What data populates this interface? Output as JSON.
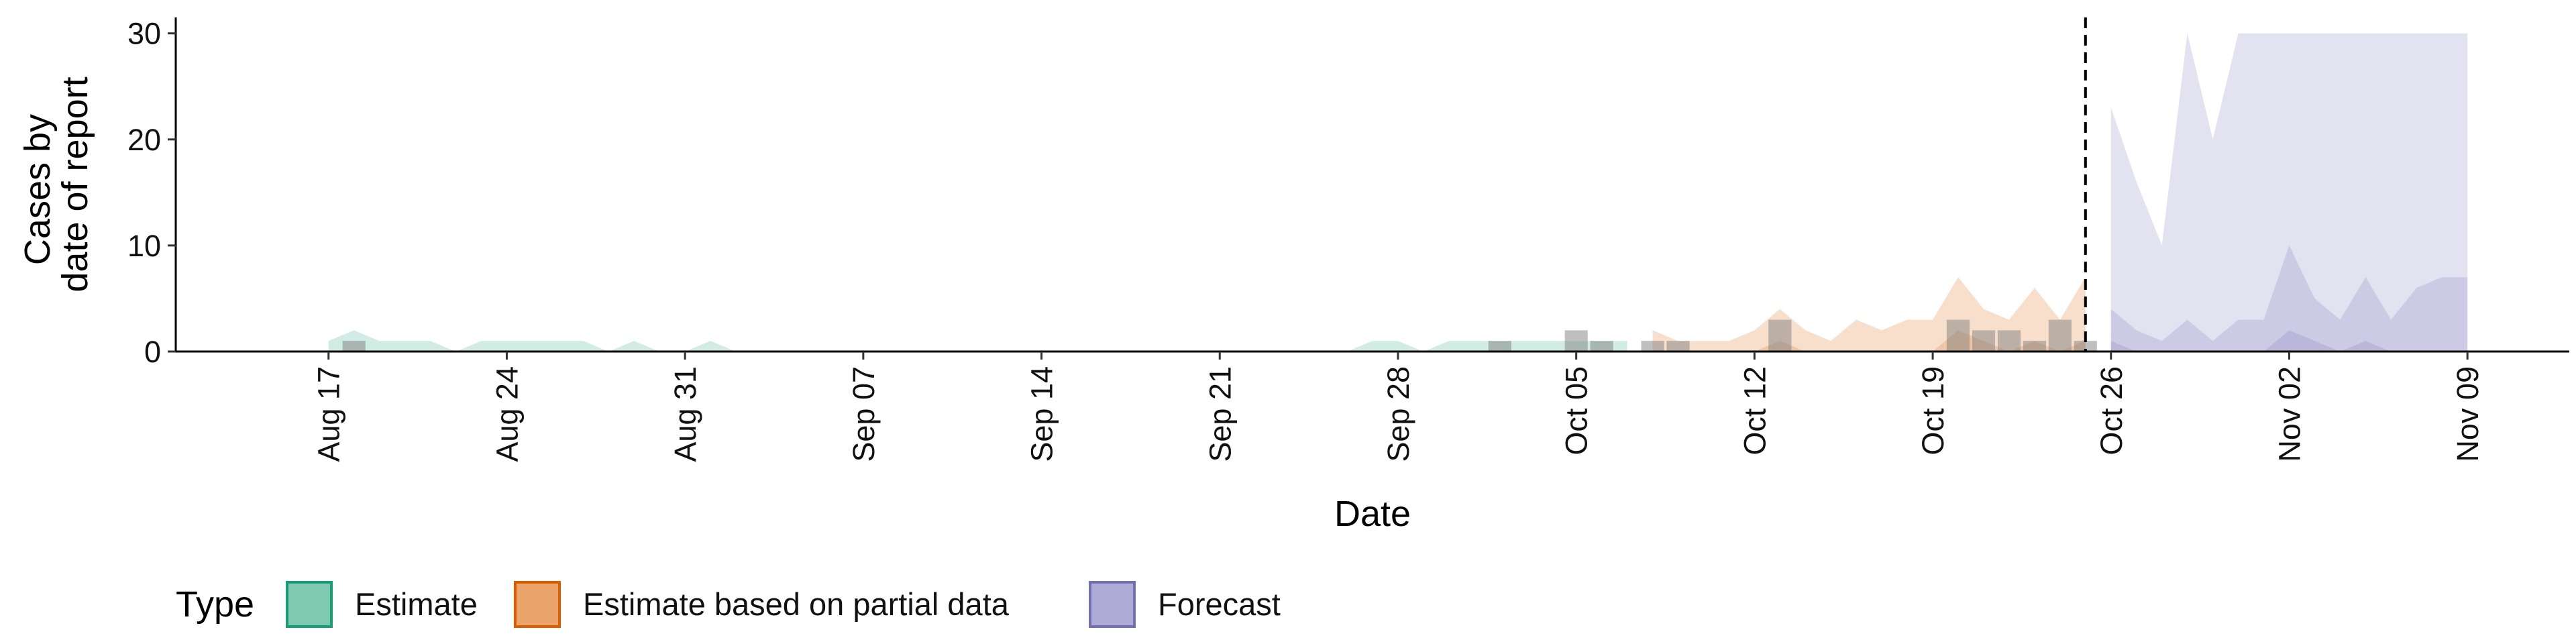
{
  "chart_data": {
    "type": "area",
    "xlabel": "Date",
    "ylabel": [
      "Cases by",
      "date of report"
    ],
    "ylim": [
      0,
      31.5
    ],
    "yticks": [
      0,
      10,
      20,
      30
    ],
    "grid": false,
    "x_ticks": [
      {
        "date": "2020-08-17",
        "label": "Aug 17"
      },
      {
        "date": "2020-08-24",
        "label": "Aug 24"
      },
      {
        "date": "2020-08-31",
        "label": "Aug 31"
      },
      {
        "date": "2020-09-07",
        "label": "Sep 07"
      },
      {
        "date": "2020-09-14",
        "label": "Sep 14"
      },
      {
        "date": "2020-09-21",
        "label": "Sep 21"
      },
      {
        "date": "2020-09-28",
        "label": "Sep 28"
      },
      {
        "date": "2020-10-05",
        "label": "Oct 05"
      },
      {
        "date": "2020-10-12",
        "label": "Oct 12"
      },
      {
        "date": "2020-10-19",
        "label": "Oct 19"
      },
      {
        "date": "2020-10-26",
        "label": "Oct 26"
      },
      {
        "date": "2020-11-02",
        "label": "Nov 02"
      },
      {
        "date": "2020-11-09",
        "label": "Nov 09"
      }
    ],
    "xlim": [
      "2020-08-11",
      "2020-11-13"
    ],
    "forecast_line_date": "2020-10-25",
    "observed_cases": {
      "dates": [
        "2020-08-18",
        "2020-10-02",
        "2020-10-05",
        "2020-10-06",
        "2020-10-08",
        "2020-10-09",
        "2020-10-13",
        "2020-10-20",
        "2020-10-21",
        "2020-10-22",
        "2020-10-23",
        "2020-10-24",
        "2020-10-25"
      ],
      "values": [
        1,
        1,
        2,
        1,
        1,
        1,
        3,
        3,
        2,
        2,
        1,
        3,
        1
      ]
    },
    "series": [
      {
        "name": "Estimate",
        "color": "#1b9e77",
        "bands": [
          {
            "dates": [
              "2020-08-17",
              "2020-08-18",
              "2020-08-19",
              "2020-08-20",
              "2020-08-21",
              "2020-08-22",
              "2020-08-23",
              "2020-08-24",
              "2020-08-25",
              "2020-08-26",
              "2020-08-27",
              "2020-08-28",
              "2020-08-29",
              "2020-08-30",
              "2020-08-31",
              "2020-09-01",
              "2020-09-02",
              "2020-09-26",
              "2020-09-27",
              "2020-09-28",
              "2020-09-29",
              "2020-09-30",
              "2020-10-01",
              "2020-10-02",
              "2020-10-03",
              "2020-10-04",
              "2020-10-05",
              "2020-10-06",
              "2020-10-07"
            ],
            "lower": [
              0,
              0,
              0,
              0,
              0,
              0,
              0,
              0,
              0,
              0,
              0,
              0,
              0,
              0,
              0,
              0,
              0,
              0,
              0,
              0,
              0,
              0,
              0,
              0,
              0,
              0,
              0,
              0,
              0
            ],
            "upper": [
              1,
              2,
              1,
              1,
              1,
              0,
              1,
              1,
              1,
              1,
              1,
              0,
              1,
              0,
              0,
              1,
              0,
              0,
              1,
              1,
              0,
              1,
              1,
              1,
              1,
              1,
              1,
              1,
              1
            ]
          }
        ]
      },
      {
        "name": "Estimate based on partial data",
        "color": "#d95f02",
        "bands": [
          {
            "dates": [
              "2020-10-08",
              "2020-10-09",
              "2020-10-10",
              "2020-10-11",
              "2020-10-12",
              "2020-10-13",
              "2020-10-14",
              "2020-10-15",
              "2020-10-16",
              "2020-10-17",
              "2020-10-18",
              "2020-10-19",
              "2020-10-20",
              "2020-10-21",
              "2020-10-22",
              "2020-10-23",
              "2020-10-24",
              "2020-10-25"
            ],
            "lower": [
              0,
              0,
              0,
              0,
              0,
              0,
              0,
              0,
              0,
              0,
              0,
              0,
              0,
              0,
              0,
              0,
              0,
              0
            ],
            "upper": [
              2,
              1,
              1,
              1,
              2,
              4,
              2,
              1,
              3,
              2,
              3,
              3,
              7,
              4,
              3,
              6,
              3,
              7
            ]
          },
          {
            "dates": [
              "2020-10-08",
              "2020-10-09",
              "2020-10-10",
              "2020-10-11",
              "2020-10-12",
              "2020-10-13",
              "2020-10-14",
              "2020-10-15",
              "2020-10-16",
              "2020-10-17",
              "2020-10-18",
              "2020-10-19",
              "2020-10-20",
              "2020-10-21",
              "2020-10-22",
              "2020-10-23",
              "2020-10-24",
              "2020-10-25"
            ],
            "lower": [
              0,
              0,
              0,
              0,
              0,
              0,
              0,
              0,
              0,
              0,
              0,
              0,
              0,
              0,
              0,
              0,
              0,
              0
            ],
            "upper": [
              0,
              0,
              0,
              0,
              0,
              1,
              0,
              0,
              0,
              0,
              0,
              0,
              2,
              1,
              0,
              1,
              0,
              1
            ]
          }
        ]
      },
      {
        "name": "Forecast",
        "color": "#7570b3",
        "bands": [
          {
            "dates": [
              "2020-10-26",
              "2020-10-27",
              "2020-10-28",
              "2020-10-29",
              "2020-10-30",
              "2020-10-31",
              "2020-11-01",
              "2020-11-02",
              "2020-11-03",
              "2020-11-04",
              "2020-11-05",
              "2020-11-06",
              "2020-11-07",
              "2020-11-08",
              "2020-11-09"
            ],
            "lower": [
              0,
              0,
              0,
              0,
              0,
              0,
              0,
              0,
              0,
              0,
              0,
              0,
              0,
              0,
              0
            ],
            "upper": [
              23,
              16,
              10,
              30,
              20,
              30,
              30,
              30,
              30,
              30,
              30,
              30,
              30,
              30,
              30
            ]
          },
          {
            "dates": [
              "2020-10-26",
              "2020-10-27",
              "2020-10-28",
              "2020-10-29",
              "2020-10-30",
              "2020-10-31",
              "2020-11-01",
              "2020-11-02",
              "2020-11-03",
              "2020-11-04",
              "2020-11-05",
              "2020-11-06",
              "2020-11-07",
              "2020-11-08",
              "2020-11-09"
            ],
            "lower": [
              0,
              0,
              0,
              0,
              0,
              0,
              0,
              0,
              0,
              0,
              0,
              0,
              0,
              0,
              0
            ],
            "upper": [
              4,
              2,
              1,
              3,
              1,
              3,
              3,
              10,
              5,
              3,
              7,
              3,
              6,
              7,
              7
            ]
          },
          {
            "dates": [
              "2020-10-26",
              "2020-10-27",
              "2020-10-28",
              "2020-10-29",
              "2020-10-30",
              "2020-10-31",
              "2020-11-01",
              "2020-11-02",
              "2020-11-03",
              "2020-11-04",
              "2020-11-05",
              "2020-11-06",
              "2020-11-07",
              "2020-11-08",
              "2020-11-09"
            ],
            "lower": [
              0,
              0,
              0,
              0,
              0,
              0,
              0,
              0,
              0,
              0,
              0,
              0,
              0,
              0,
              0
            ],
            "upper": [
              1,
              0,
              0,
              0,
              0,
              0,
              0,
              2,
              1,
              0,
              1,
              0,
              0,
              0,
              0
            ]
          }
        ]
      }
    ],
    "legend": {
      "position": "bottom",
      "title": "Type",
      "items": [
        {
          "label": "Estimate",
          "fill": "#7fc9b0",
          "stroke": "#1b9e77"
        },
        {
          "label": "Estimate based on partial data",
          "fill": "#eca46d",
          "stroke": "#d95f02"
        },
        {
          "label": "Forecast",
          "fill": "#aeabd6",
          "stroke": "#7570b3"
        }
      ]
    }
  }
}
